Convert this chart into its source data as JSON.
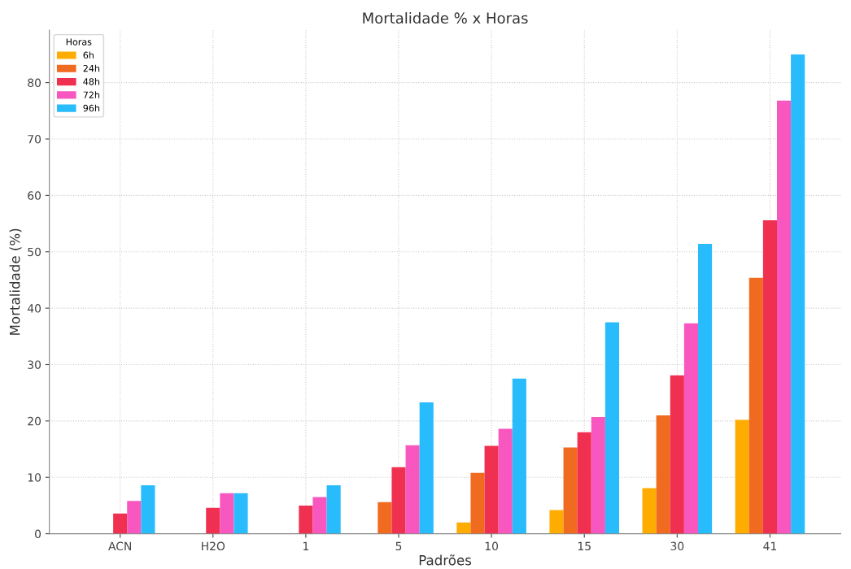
{
  "chart_data": {
    "type": "bar",
    "title": "Mortalidade % x Horas",
    "xlabel": "Padrões",
    "ylabel": "Mortalidade (%)",
    "categories": [
      "ACN",
      "H2O",
      "1",
      "5",
      "10",
      "15",
      "30",
      "41"
    ],
    "series": [
      {
        "name": "6h",
        "color": "#ffac00",
        "values": [
          0,
          0,
          0,
          0,
          2.0,
          4.2,
          8.1,
          20.2
        ]
      },
      {
        "name": "24h",
        "color": "#f06a20",
        "values": [
          0,
          0,
          0,
          5.6,
          10.8,
          15.3,
          21.0,
          45.4
        ]
      },
      {
        "name": "48h",
        "color": "#f03050",
        "values": [
          3.6,
          4.6,
          5.0,
          11.8,
          15.6,
          18.0,
          28.1,
          55.6
        ]
      },
      {
        "name": "72h",
        "color": "#f857c0",
        "values": [
          5.8,
          7.2,
          6.5,
          15.7,
          18.6,
          20.7,
          37.3,
          76.8
        ]
      },
      {
        "name": "96h",
        "color": "#28bcfc",
        "values": [
          8.6,
          7.2,
          8.6,
          23.3,
          27.5,
          37.5,
          51.4,
          85.0
        ]
      }
    ],
    "legend_title": "Horas",
    "legend": "top left",
    "grid": true,
    "ylim": [
      0,
      89.3
    ],
    "yticks": [
      0,
      10,
      20,
      30,
      40,
      50,
      60,
      70,
      80
    ]
  }
}
